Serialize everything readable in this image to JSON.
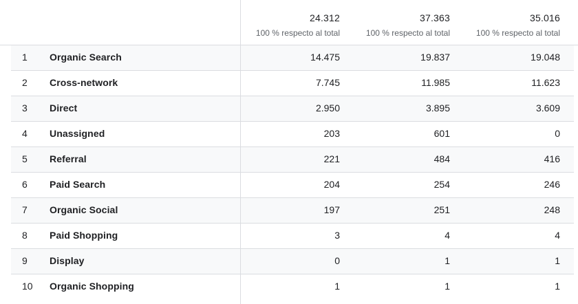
{
  "header": {
    "columns": [
      {
        "total": "24.312",
        "subtitle": "100 % respecto al total"
      },
      {
        "total": "37.363",
        "subtitle": "100 % respecto al total"
      },
      {
        "total": "35.016",
        "subtitle": "100 % respecto al total"
      }
    ]
  },
  "rows": [
    {
      "rank": "1",
      "label": "Organic Search",
      "values": [
        "14.475",
        "19.837",
        "19.048"
      ]
    },
    {
      "rank": "2",
      "label": "Cross-network",
      "values": [
        "7.745",
        "11.985",
        "11.623"
      ]
    },
    {
      "rank": "3",
      "label": "Direct",
      "values": [
        "2.950",
        "3.895",
        "3.609"
      ]
    },
    {
      "rank": "4",
      "label": "Unassigned",
      "values": [
        "203",
        "601",
        "0"
      ]
    },
    {
      "rank": "5",
      "label": "Referral",
      "values": [
        "221",
        "484",
        "416"
      ]
    },
    {
      "rank": "6",
      "label": "Paid Search",
      "values": [
        "204",
        "254",
        "246"
      ]
    },
    {
      "rank": "7",
      "label": "Organic Social",
      "values": [
        "197",
        "251",
        "248"
      ]
    },
    {
      "rank": "8",
      "label": "Paid Shopping",
      "values": [
        "3",
        "4",
        "4"
      ]
    },
    {
      "rank": "9",
      "label": "Display",
      "values": [
        "0",
        "1",
        "1"
      ]
    },
    {
      "rank": "10",
      "label": "Organic Shopping",
      "values": [
        "1",
        "1",
        "1"
      ]
    }
  ]
}
